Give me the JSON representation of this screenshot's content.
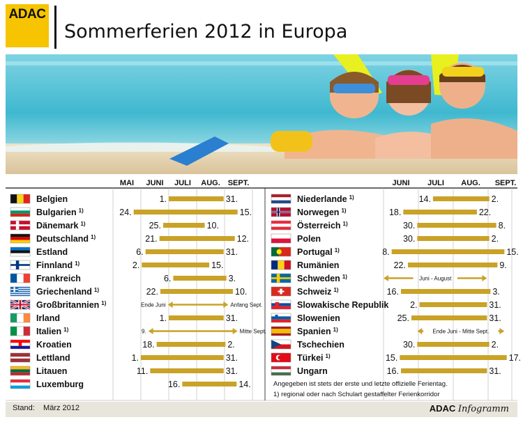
{
  "header": {
    "logo": "ADAC",
    "title": "Sommerferien 2012 in Europa"
  },
  "footer": {
    "stand_label": "Stand:",
    "stand_value": "März 2012",
    "brand_bold": "ADAC",
    "brand_italic": "Infogramm"
  },
  "notes": {
    "line1": "Angegeben ist stets der erste und letzte offizielle Ferientag.",
    "line2": "1) regional oder nach Schulart gestaffelter Ferienkorridor"
  },
  "colors": {
    "bar": "#c9a227",
    "logo": "#f6c400",
    "footer_bg": "#e8e6dc"
  },
  "chart_data": {
    "type": "bar",
    "title": "Sommerferien 2012 in Europa",
    "orientation": "horizontal-range",
    "months": [
      "MAI",
      "JUNI",
      "JULI",
      "AUG.",
      "SEPT."
    ],
    "columns": [
      {
        "months": [
          "MAI",
          "JUNI",
          "JULI",
          "AUG.",
          "SEPT."
        ],
        "countries": [
          {
            "name": "Belgien",
            "footnote": "",
            "flag": "belgium",
            "start": "2012-07-01",
            "end": "2012-08-31",
            "start_label": "1.",
            "end_label": "31.",
            "arrows": false
          },
          {
            "name": "Bulgarien",
            "footnote": "1)",
            "flag": "bulgaria",
            "start": "2012-05-24",
            "end": "2012-09-15",
            "start_label": "24.",
            "end_label": "15.",
            "arrows": false
          },
          {
            "name": "Dänemark",
            "footnote": "1)",
            "flag": "denmark",
            "start": "2012-06-25",
            "end": "2012-08-10",
            "start_label": "25.",
            "end_label": "10.",
            "arrows": false
          },
          {
            "name": "Deutschland",
            "footnote": "1)",
            "flag": "germany",
            "start": "2012-06-21",
            "end": "2012-09-12",
            "start_label": "21.",
            "end_label": "12.",
            "arrows": false
          },
          {
            "name": "Estland",
            "footnote": "",
            "flag": "estonia",
            "start": "2012-06-06",
            "end": "2012-08-31",
            "start_label": "6.",
            "end_label": "31.",
            "arrows": false
          },
          {
            "name": "Finnland",
            "footnote": "1)",
            "flag": "finland",
            "start": "2012-06-02",
            "end": "2012-08-15",
            "start_label": "2.",
            "end_label": "15.",
            "arrows": false
          },
          {
            "name": "Frankreich",
            "footnote": "",
            "flag": "france",
            "start": "2012-07-06",
            "end": "2012-09-03",
            "start_label": "6.",
            "end_label": "3.",
            "arrows": false
          },
          {
            "name": "Griechenland",
            "footnote": "1)",
            "flag": "greece",
            "start": "2012-06-22",
            "end": "2012-09-10",
            "start_label": "22.",
            "end_label": "10.",
            "arrows": false
          },
          {
            "name": "Großbritannien",
            "footnote": "1)",
            "flag": "uk",
            "start": "2012-06-30",
            "end": "2012-09-05",
            "start_label": "Ende Juni",
            "end_label": "Anfang Sept.",
            "arrows": true
          },
          {
            "name": "Irland",
            "footnote": "",
            "flag": "ireland",
            "start": "2012-07-01",
            "end": "2012-08-31",
            "start_label": "1.",
            "end_label": "31.",
            "arrows": false
          },
          {
            "name": "Italien",
            "footnote": "1)",
            "flag": "italy",
            "start": "2012-06-09",
            "end": "2012-09-15",
            "start_label": "9.",
            "end_label": "Mitte Sept.",
            "arrows": true
          },
          {
            "name": "Kroatien",
            "footnote": "",
            "flag": "croatia",
            "start": "2012-06-18",
            "end": "2012-09-02",
            "start_label": "18.",
            "end_label": "2.",
            "arrows": false
          },
          {
            "name": "Lettland",
            "footnote": "",
            "flag": "latvia",
            "start": "2012-06-01",
            "end": "2012-08-31",
            "start_label": "1.",
            "end_label": "31.",
            "arrows": false
          },
          {
            "name": "Litauen",
            "footnote": "",
            "flag": "lithuania",
            "start": "2012-06-11",
            "end": "2012-08-31",
            "start_label": "11.",
            "end_label": "31.",
            "arrows": false
          },
          {
            "name": "Luxemburg",
            "footnote": "",
            "flag": "luxembourg",
            "start": "2012-07-16",
            "end": "2012-09-14",
            "start_label": "16.",
            "end_label": "14.",
            "arrows": false
          }
        ]
      },
      {
        "months": [
          "JUNI",
          "JULI",
          "AUG.",
          "SEPT."
        ],
        "countries": [
          {
            "name": "Niederlande",
            "footnote": "1)",
            "flag": "netherlands",
            "start": "2012-07-14",
            "end": "2012-09-02",
            "start_label": "14.",
            "end_label": "2.",
            "arrows": false
          },
          {
            "name": "Norwegen",
            "footnote": "1)",
            "flag": "norway",
            "start": "2012-06-18",
            "end": "2012-08-22",
            "start_label": "18.",
            "end_label": "22.",
            "arrows": false
          },
          {
            "name": "Österreich",
            "footnote": "1)",
            "flag": "austria",
            "start": "2012-06-30",
            "end": "2012-09-08",
            "start_label": "30.",
            "end_label": "8.",
            "arrows": false
          },
          {
            "name": "Polen",
            "footnote": "",
            "flag": "poland",
            "start": "2012-06-30",
            "end": "2012-09-02",
            "start_label": "30.",
            "end_label": "2.",
            "arrows": false
          },
          {
            "name": "Portugal",
            "footnote": "1)",
            "flag": "portugal",
            "start": "2012-06-08",
            "end": "2012-09-15",
            "start_label": "8.",
            "end_label": "15.",
            "arrows": false
          },
          {
            "name": "Rumänien",
            "footnote": "",
            "flag": "romania",
            "start": "2012-06-22",
            "end": "2012-09-09",
            "start_label": "22.",
            "end_label": "9.",
            "arrows": false
          },
          {
            "name": "Schweden",
            "footnote": "1)",
            "flag": "sweden",
            "start": "2012-06-01",
            "end": "2012-08-31",
            "start_label": "",
            "end_label": "",
            "center_label": "Juni - August",
            "arrows": true
          },
          {
            "name": "Schweiz",
            "footnote": "1)",
            "flag": "switzerland",
            "start": "2012-06-16",
            "end": "2012-09-03",
            "start_label": "16.",
            "end_label": "3.",
            "arrows": false
          },
          {
            "name": "Slowakische Republik",
            "footnote": "",
            "flag": "slovakia",
            "start": "2012-07-02",
            "end": "2012-08-31",
            "start_label": "2.",
            "end_label": "31.",
            "arrows": false
          },
          {
            "name": "Slowenien",
            "footnote": "",
            "flag": "slovenia",
            "start": "2012-06-25",
            "end": "2012-08-31",
            "start_label": "25.",
            "end_label": "31.",
            "arrows": false
          },
          {
            "name": "Spanien",
            "footnote": "1)",
            "flag": "spain",
            "start": "2012-06-30",
            "end": "2012-09-15",
            "start_label": "",
            "end_label": "",
            "center_label": "Ende Juni - Mitte Sept.",
            "arrows": true
          },
          {
            "name": "Tschechien",
            "footnote": "",
            "flag": "czech",
            "start": "2012-06-30",
            "end": "2012-09-02",
            "start_label": "30.",
            "end_label": "2.",
            "arrows": false
          },
          {
            "name": "Türkei",
            "footnote": "1)",
            "flag": "turkey",
            "start": "2012-06-15",
            "end": "2012-09-17",
            "start_label": "15.",
            "end_label": "17.",
            "arrows": false
          },
          {
            "name": "Ungarn",
            "footnote": "",
            "flag": "hungary",
            "start": "2012-06-16",
            "end": "2012-08-31",
            "start_label": "16.",
            "end_label": "31.",
            "arrows": false
          }
        ]
      }
    ]
  }
}
